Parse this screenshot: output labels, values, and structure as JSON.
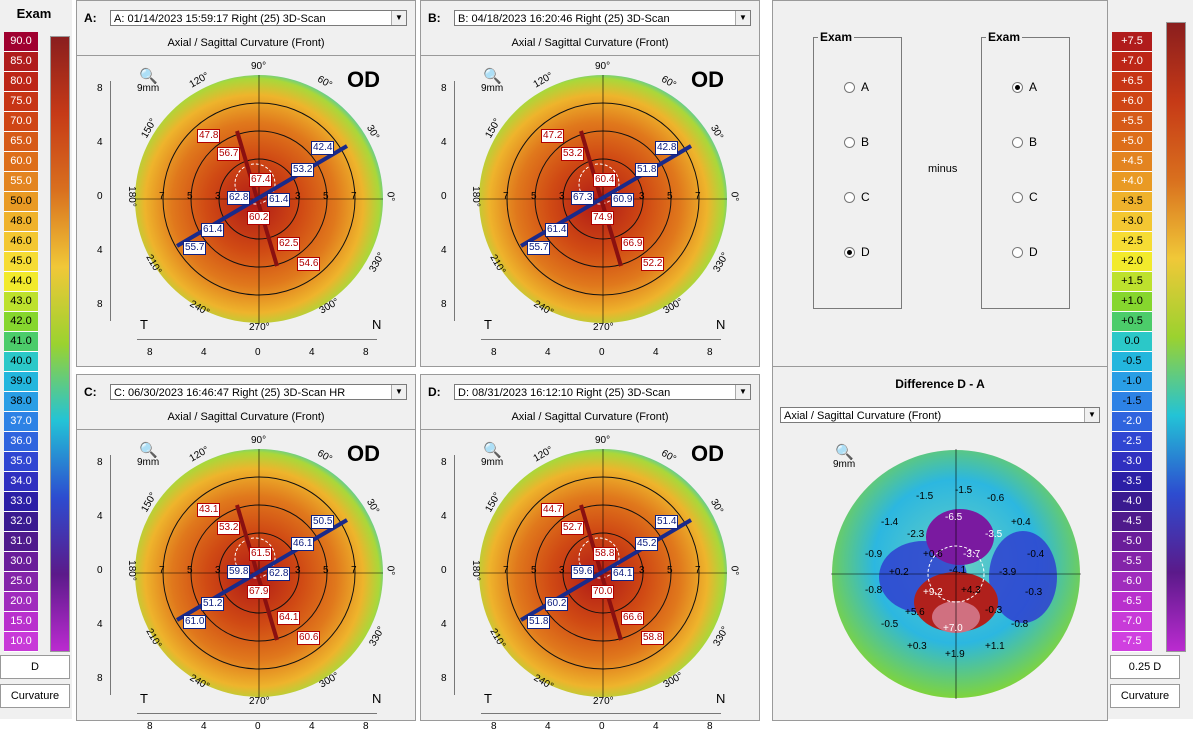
{
  "left_scale": {
    "title": "Exam",
    "values": [
      "90.0",
      "85.0",
      "80.0",
      "75.0",
      "70.0",
      "65.0",
      "60.0",
      "55.0",
      "50.0",
      "48.0",
      "46.0",
      "45.0",
      "44.0",
      "43.0",
      "42.0",
      "41.0",
      "40.0",
      "39.0",
      "38.0",
      "37.0",
      "36.0",
      "35.0",
      "34.0",
      "33.0",
      "32.0",
      "31.0",
      "30.0",
      "25.0",
      "20.0",
      "15.0",
      "10.0"
    ],
    "colors": [
      "#a00030",
      "#b01c1c",
      "#bd2617",
      "#c73515",
      "#cf4515",
      "#d65a18",
      "#dd6e1a",
      "#e38420",
      "#e99a24",
      "#efb22c",
      "#f3c732",
      "#f6dc34",
      "#f2ea2c",
      "#bde12d",
      "#86d62e",
      "#4ccc6a",
      "#2bc8c8",
      "#23b6dd",
      "#2a9ee5",
      "#2d82e5",
      "#2f64de",
      "#3046d2",
      "#3030c0",
      "#2c1fa6",
      "#3a1a90",
      "#4f1a8c",
      "#6a1d9a",
      "#8424a9",
      "#a02cbd",
      "#b930cd",
      "#c83ad8"
    ],
    "unit": "D",
    "mode": "Curvature"
  },
  "right_scale": {
    "title": "",
    "values": [
      "+7.5",
      "+7.0",
      "+6.5",
      "+6.0",
      "+5.5",
      "+5.0",
      "+4.5",
      "+4.0",
      "+3.5",
      "+3.0",
      "+2.5",
      "+2.0",
      "+1.5",
      "+1.0",
      "+0.5",
      "0.0",
      "-0.5",
      "-1.0",
      "-1.5",
      "-2.0",
      "-2.5",
      "-3.0",
      "-3.5",
      "-4.0",
      "-4.5",
      "-5.0",
      "-5.5",
      "-6.0",
      "-6.5",
      "-7.0",
      "-7.5"
    ],
    "colors": [
      "#b01c1c",
      "#bd2617",
      "#c73515",
      "#cf4515",
      "#d65a18",
      "#dd6e1a",
      "#e38420",
      "#e99a24",
      "#efb22c",
      "#f3c732",
      "#f6dc34",
      "#f2ea2c",
      "#bde12d",
      "#86d62e",
      "#4ccc6a",
      "#2bc8c8",
      "#23b6dd",
      "#2a9ee5",
      "#2d82e5",
      "#2f64de",
      "#3046d2",
      "#3030c0",
      "#2c1fa6",
      "#3a1a90",
      "#4f1a8c",
      "#6a1d9a",
      "#8424a9",
      "#a02cbd",
      "#b930cd",
      "#c83ad8",
      "#d040e0"
    ],
    "unit": "0.25 D",
    "mode": "Curvature"
  },
  "panels": [
    {
      "letter": "A:",
      "select": "A: 01/14/2023  15:59:17  Right  (25) 3D-Scan",
      "mode": "Axial / Sagittal Curvature (Front)",
      "eye": "OD",
      "zoom": "9mm",
      "red_labels": [
        "47.8",
        "56.7",
        "67.4",
        "60.2",
        "62.5",
        "54.6"
      ],
      "blue_labels": [
        "42.4",
        "53.2",
        "62.8",
        "61.4",
        "61.4",
        "55.7"
      ]
    },
    {
      "letter": "B:",
      "select": "B: 04/18/2023  16:20:46  Right  (25) 3D-Scan",
      "mode": "Axial / Sagittal Curvature (Front)",
      "eye": "OD",
      "zoom": "9mm",
      "red_labels": [
        "47.2",
        "53.2",
        "60.4",
        "74.9",
        "66.9",
        "52.2"
      ],
      "blue_labels": [
        "42.8",
        "51.8",
        "67.3",
        "60.9",
        "61.4",
        "55.7"
      ]
    },
    {
      "letter": "C:",
      "select": "C: 06/30/2023  16:46:47  Right  (25) 3D-Scan HR",
      "mode": "Axial / Sagittal Curvature (Front)",
      "eye": "OD",
      "zoom": "9mm",
      "red_labels": [
        "43.1",
        "53.2",
        "61.5",
        "67.9",
        "64.1",
        "60.6"
      ],
      "blue_labels": [
        "50.5",
        "46.1",
        "59.8",
        "62.8",
        "51.2",
        "61.0"
      ]
    },
    {
      "letter": "D:",
      "select": "D: 08/31/2023  16:12:10  Right  (25) 3D-Scan",
      "mode": "Axial / Sagittal Curvature (Front)",
      "eye": "OD",
      "zoom": "9mm",
      "red_labels": [
        "44.7",
        "52.7",
        "58.8",
        "70.0",
        "66.6",
        "58.8"
      ],
      "blue_labels": [
        "51.4",
        "45.2",
        "59.6",
        "64.1",
        "60.2",
        "51.8"
      ]
    }
  ],
  "map_ticks": {
    "deg_top": "90°",
    "deg_bottom": "270°",
    "deg_left": "180°",
    "deg_right": "0°",
    "deg_120": "120°",
    "deg_60": "60°",
    "deg_150": "150°",
    "deg_30": "30°",
    "deg_210": "210°",
    "deg_330": "330°",
    "deg_240": "240°",
    "deg_300": "300°",
    "axis_y": [
      "8",
      "4",
      "0",
      "4",
      "8"
    ],
    "axis_x": [
      "8",
      "4",
      "0",
      "4",
      "8"
    ],
    "ring": [
      "7",
      "5",
      "3",
      "3",
      "5",
      "7"
    ],
    "temporal": "T",
    "nasal": "N"
  },
  "compare": {
    "left_group": "Exam",
    "right_group": "Exam",
    "options": [
      "A",
      "B",
      "C",
      "D"
    ],
    "left_selected": "D",
    "right_selected": "A",
    "operator": "minus"
  },
  "difference": {
    "title": "Difference D - A",
    "mode": "Axial / Sagittal Curvature (Front)",
    "zoom": "9mm",
    "labels": [
      "-1.5",
      "-1.5",
      "-0.6",
      "-1.4",
      "-2.3",
      "-6.5",
      "-3.5",
      "+0.4",
      "-0.9",
      "+0.6",
      "-3.7",
      "-0.4",
      "+0.2",
      "-4.1",
      "-3.9",
      "-0.8",
      "+9.2",
      "+4.3",
      "-0.3",
      "+5.6",
      "-0.3",
      "-0.5",
      "+7.0",
      "-0.8",
      "+0.3",
      "+1.9",
      "+1.1"
    ]
  }
}
